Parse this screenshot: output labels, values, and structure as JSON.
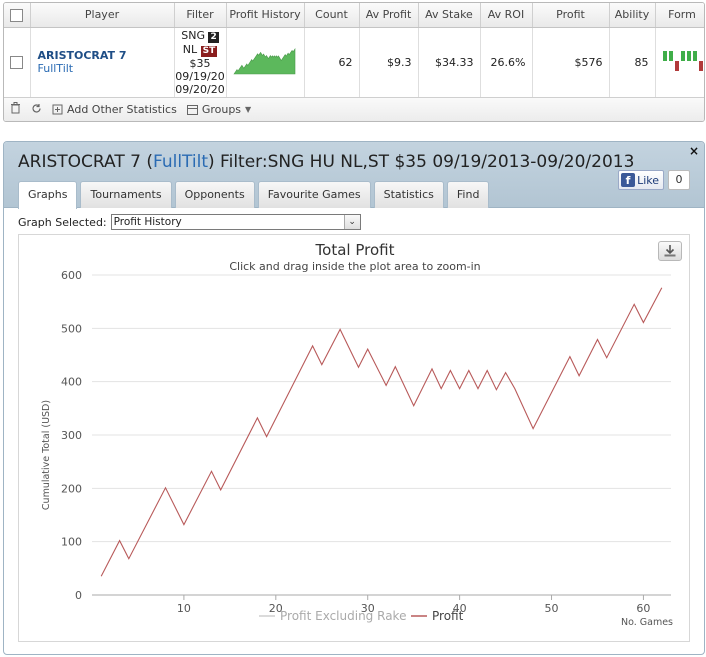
{
  "stats": {
    "columns": [
      "Player",
      "Filter",
      "Profit History",
      "Count",
      "Av Profit",
      "Av Stake",
      "Av ROI",
      "Profit",
      "Ability",
      "Form"
    ],
    "row": {
      "player_name": "ARISTOCRAT 7",
      "player_site": "FullTilt",
      "filter_line1": "SNG",
      "filter_badge_hu": "2",
      "filter_line2": "NL",
      "filter_badge_st": "ST",
      "filter_stake": "$35",
      "filter_date_from": "09/19/20",
      "filter_date_to": "09/20/20",
      "count": "62",
      "av_profit": "$9.3",
      "av_stake": "$34.33",
      "av_roi": "26.6%",
      "profit": "$576",
      "ability": "85",
      "remove": "x",
      "form_bars": [
        1,
        1,
        -1,
        1,
        1,
        1,
        -1
      ]
    },
    "footer": {
      "add_stats_label": "Add Other Statistics",
      "groups_label": "Groups"
    }
  },
  "graph": {
    "title_prefix": "ARISTOCRAT 7 (",
    "title_site": "FullTilt",
    "title_suffix": ") Filter:SNG HU NL,ST $35 09/19/2013-09/20/2013",
    "close": "×",
    "like_label": "Like",
    "like_count": "0",
    "tabs": [
      "Graphs",
      "Tournaments",
      "Opponents",
      "Favourite Games",
      "Statistics",
      "Find"
    ],
    "active_tab": 0,
    "select_label": "Graph Selected:",
    "select_value": "Profit History"
  },
  "chart_data": {
    "type": "line",
    "title": "Total Profit",
    "subtitle": "Click and drag inside the plot area to zoom-in",
    "ylabel": "Cumulative Total (USD)",
    "xlabel": "No. Games",
    "xlim": [
      0,
      63
    ],
    "ylim": [
      0,
      600
    ],
    "x_ticks": [
      10,
      20,
      30,
      40,
      50,
      60
    ],
    "y_ticks": [
      0,
      100,
      200,
      300,
      400,
      500,
      600
    ],
    "legend_position": "bottom",
    "series": [
      {
        "name": "Profit Excluding Rake",
        "color": "#d0d0d0",
        "visible": false,
        "values": []
      },
      {
        "name": "Profit",
        "color": "#b85a5a",
        "x": [
          1,
          3,
          4,
          8,
          10,
          13,
          14,
          18,
          19,
          24,
          25,
          27,
          29,
          30,
          32,
          33,
          35,
          37,
          38,
          39,
          40,
          41,
          42,
          43,
          44,
          45,
          46,
          48,
          52,
          53,
          55,
          56,
          59,
          60,
          62
        ],
        "values": [
          35,
          102,
          68,
          201,
          132,
          232,
          197,
          332,
          297,
          467,
          432,
          498,
          427,
          461,
          393,
          428,
          355,
          424,
          387,
          421,
          387,
          421,
          387,
          421,
          385,
          417,
          387,
          312,
          447,
          411,
          479,
          445,
          545,
          511,
          576
        ]
      }
    ]
  }
}
